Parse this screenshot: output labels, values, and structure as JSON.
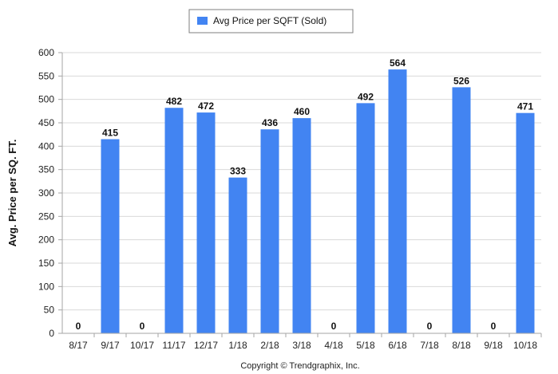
{
  "chart_data": {
    "type": "bar",
    "categories": [
      "8/17",
      "9/17",
      "10/17",
      "11/17",
      "12/17",
      "1/18",
      "2/18",
      "3/18",
      "4/18",
      "5/18",
      "6/18",
      "7/18",
      "8/18",
      "9/18",
      "10/18"
    ],
    "series": [
      {
        "name": "Avg Price per SQFT (Sold)",
        "values": [
          0,
          415,
          0,
          482,
          472,
          333,
          436,
          460,
          0,
          492,
          564,
          0,
          526,
          0,
          471
        ]
      }
    ],
    "data_labels": [
      "0",
      "415",
      "0",
      "482",
      "472",
      "333",
      "436",
      "460",
      "0",
      "492",
      "564",
      "0",
      "526",
      "0",
      "471"
    ],
    "y_ticks": [
      "0",
      "50",
      "100",
      "150",
      "200",
      "250",
      "300",
      "350",
      "400",
      "450",
      "500",
      "550",
      "600"
    ],
    "ylim": [
      0,
      600
    ],
    "ylabel": "Avg. Price per SQ. FT.",
    "xlabel": "",
    "title": "",
    "grid": true,
    "legend_position": "top-center",
    "colors": {
      "bar": "#4284F2",
      "grid": "#D9D9D9",
      "axis": "#A6A6A6"
    }
  },
  "legend": {
    "label": "Avg Price per SQFT (Sold)"
  },
  "footer": {
    "copyright": "Copyright © Trendgraphix, Inc."
  }
}
